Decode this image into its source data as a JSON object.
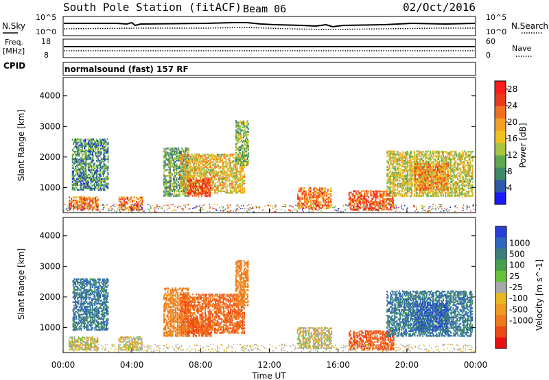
{
  "header": {
    "station": "South Pole Station (fitACF)",
    "beam": "Beam 06",
    "date": "02/Oct/2016"
  },
  "aux": {
    "nsky_label": "N.Sky",
    "nsky_ticks": [
      "10^5",
      "10^0"
    ],
    "nsearch_label": "N.Search",
    "nsearch_ticks": [
      "10^5",
      "10^0"
    ],
    "freq_label": "Freq.",
    "freq_unit": "[MHz]",
    "freq_ticks": [
      "18",
      "8"
    ],
    "nave_label": "Nave",
    "nave_ticks": [
      "60",
      "0"
    ],
    "cpid_label": "CPID",
    "cpid_text": "normalsound (fast) 157 RF"
  },
  "chart_data": {
    "type": "heatmap",
    "xlabel": "Time UT",
    "x_ticks": [
      "00:00",
      "04:00",
      "08:00",
      "12:00",
      "16:00",
      "20:00",
      "00:00"
    ],
    "xlim_hours": [
      0,
      24
    ],
    "panels": [
      {
        "name": "power",
        "ylabel": "Slant Range [km]",
        "ylim": [
          180,
          4600
        ],
        "y_ticks": [
          1000,
          2000,
          3000,
          4000
        ],
        "colorbar_label": "Power [dB]",
        "colorbar_ticks": [
          "4",
          "8",
          "12",
          "16",
          "20",
          "24",
          "28"
        ],
        "colorbar_range": [
          0,
          30
        ],
        "colorbar_colors": [
          "#1a1aff",
          "#2c59a8",
          "#3c8a6a",
          "#5fa84c",
          "#a8c440",
          "#f0c020",
          "#f5a020",
          "#f07020",
          "#ea3a1a",
          "#ff1a1a"
        ]
      },
      {
        "name": "velocity",
        "ylabel": "Slant Range [km]",
        "ylim": [
          180,
          4600
        ],
        "y_ticks": [
          1000,
          2000,
          3000,
          4000
        ],
        "colorbar_label": "Velocity [m s^-1]",
        "colorbar_ticks": [
          "1000",
          "500",
          "100",
          "25",
          "-25",
          "-100",
          "-500",
          "-1000"
        ],
        "colorbar_colors": [
          "#2a3fd8",
          "#2e66c0",
          "#3c7f7a",
          "#44a04c",
          "#66c23a",
          "#a8a8a8",
          "#e8b820",
          "#f09a20",
          "#f07a1a",
          "#f04a14",
          "#e81010"
        ]
      }
    ],
    "echo_regions": [
      {
        "t": [
          0.3,
          2.0
        ],
        "r": [
          250,
          700
        ],
        "power": 22,
        "velocity": 50
      },
      {
        "t": [
          0.5,
          2.6
        ],
        "r": [
          900,
          2600
        ],
        "power": 8,
        "velocity": 700
      },
      {
        "t": [
          3.2,
          4.6
        ],
        "r": [
          250,
          700
        ],
        "power": 22,
        "velocity": 30
      },
      {
        "t": [
          5.8,
          7.3
        ],
        "r": [
          700,
          2300
        ],
        "power": 10,
        "velocity": -150
      },
      {
        "t": [
          6.8,
          10.5
        ],
        "r": [
          800,
          2100
        ],
        "power": 17,
        "velocity": -280
      },
      {
        "t": [
          7.2,
          8.6
        ],
        "r": [
          700,
          1300
        ],
        "power": 25,
        "velocity": -350
      },
      {
        "t": [
          10.0,
          10.8
        ],
        "r": [
          1700,
          3200
        ],
        "power": 12,
        "velocity": -150
      },
      {
        "t": [
          13.6,
          15.6
        ],
        "r": [
          300,
          1000
        ],
        "power": 22,
        "velocity": 40
      },
      {
        "t": [
          16.6,
          19.2
        ],
        "r": [
          250,
          900
        ],
        "power": 24,
        "velocity": -350
      },
      {
        "t": [
          18.8,
          23.8
        ],
        "r": [
          700,
          2200
        ],
        "power": 15,
        "velocity": 700
      },
      {
        "t": [
          20.4,
          22.4
        ],
        "r": [
          900,
          1800
        ],
        "power": 21,
        "velocity": 850
      }
    ]
  }
}
